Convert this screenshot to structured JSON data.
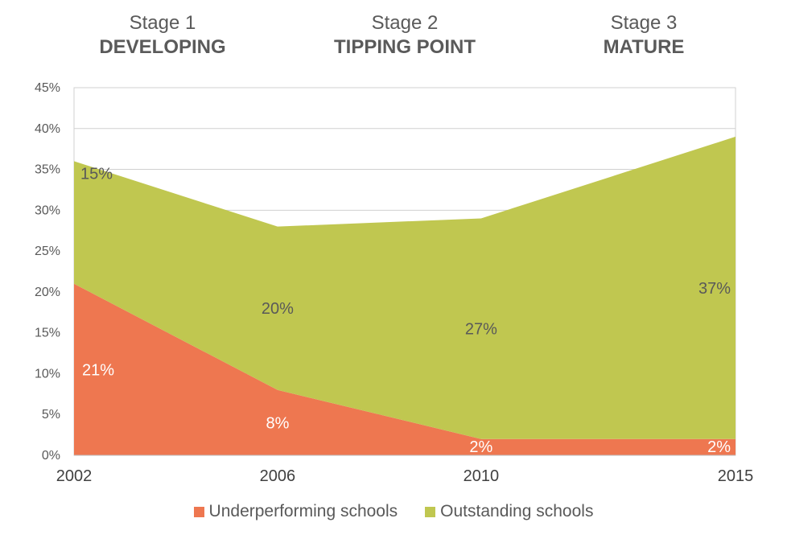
{
  "stages": [
    {
      "number": "Stage 1",
      "name": "DEVELOPING"
    },
    {
      "number": "Stage 2",
      "name": "TIPPING POINT"
    },
    {
      "number": "Stage 3",
      "name": "MATURE"
    }
  ],
  "chart_data": {
    "type": "area",
    "stacked": true,
    "categories": [
      "2002",
      "2006",
      "2010",
      "2015"
    ],
    "series": [
      {
        "name": "Underperforming schools",
        "values": [
          21,
          8,
          2,
          2
        ],
        "labels": [
          "21%",
          "8%",
          "2%",
          "2%"
        ],
        "color": "#ee7750"
      },
      {
        "name": "Outstanding schools",
        "values": [
          15,
          20,
          27,
          37
        ],
        "labels": [
          "15%",
          "20%",
          "27%",
          "37%"
        ],
        "color": "#c0c750"
      }
    ],
    "y_ticks": [
      "0%",
      "5%",
      "10%",
      "15%",
      "20%",
      "25%",
      "30%",
      "35%",
      "40%",
      "45%"
    ],
    "ylim": [
      0,
      45
    ],
    "grid": true,
    "legend_position": "bottom"
  }
}
